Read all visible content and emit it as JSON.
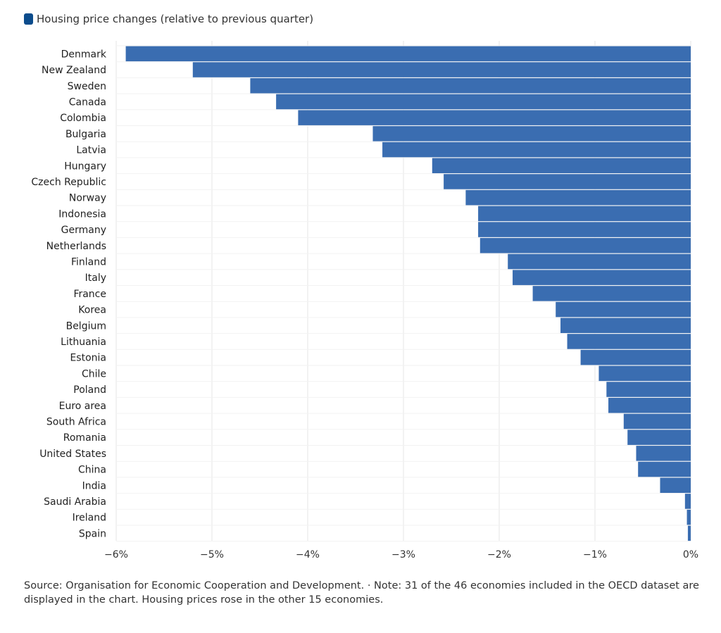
{
  "legend": {
    "label": "Housing price changes (relative to previous quarter)",
    "color": "#0b4c8c"
  },
  "footer": {
    "text": "Source: Organisation for Economic Cooperation and Development. · Note: 31 of the 46 economies included in the OECD dataset are displayed in the chart. Housing prices rose in the other 15 economies."
  },
  "chart_data": {
    "type": "bar",
    "orientation": "horizontal",
    "series": [
      {
        "name": "Housing price changes (relative to previous quarter)",
        "color": "#3a6db1",
        "values": [
          -5.9,
          -5.2,
          -4.6,
          -4.33,
          -4.1,
          -3.32,
          -3.22,
          -2.7,
          -2.58,
          -2.35,
          -2.22,
          -2.22,
          -2.2,
          -1.91,
          -1.86,
          -1.65,
          -1.41,
          -1.36,
          -1.29,
          -1.15,
          -0.96,
          -0.88,
          -0.86,
          -0.7,
          -0.66,
          -0.57,
          -0.55,
          -0.32,
          -0.06,
          -0.04,
          -0.03
        ]
      }
    ],
    "categories": [
      "Denmark",
      "New Zealand",
      "Sweden",
      "Canada",
      "Colombia",
      "Bulgaria",
      "Latvia",
      "Hungary",
      "Czech Republic",
      "Norway",
      "Indonesia",
      "Germany",
      "Netherlands",
      "Finland",
      "Italy",
      "France",
      "Korea",
      "Belgium",
      "Lithuania",
      "Estonia",
      "Chile",
      "Poland",
      "Euro area",
      "South Africa",
      "Romania",
      "United States",
      "China",
      "India",
      "Saudi Arabia",
      "Ireland",
      "Spain"
    ],
    "xlim": [
      -6,
      0
    ],
    "x_ticks": [
      -6,
      -5,
      -4,
      -3,
      -2,
      -1,
      0
    ],
    "x_tick_labels": [
      "−6%",
      "−5%",
      "−4%",
      "−3%",
      "−2%",
      "−1%",
      "0%"
    ],
    "grid": "vertical",
    "legend_position": "top-left",
    "title": "",
    "xlabel": "",
    "ylabel": ""
  }
}
